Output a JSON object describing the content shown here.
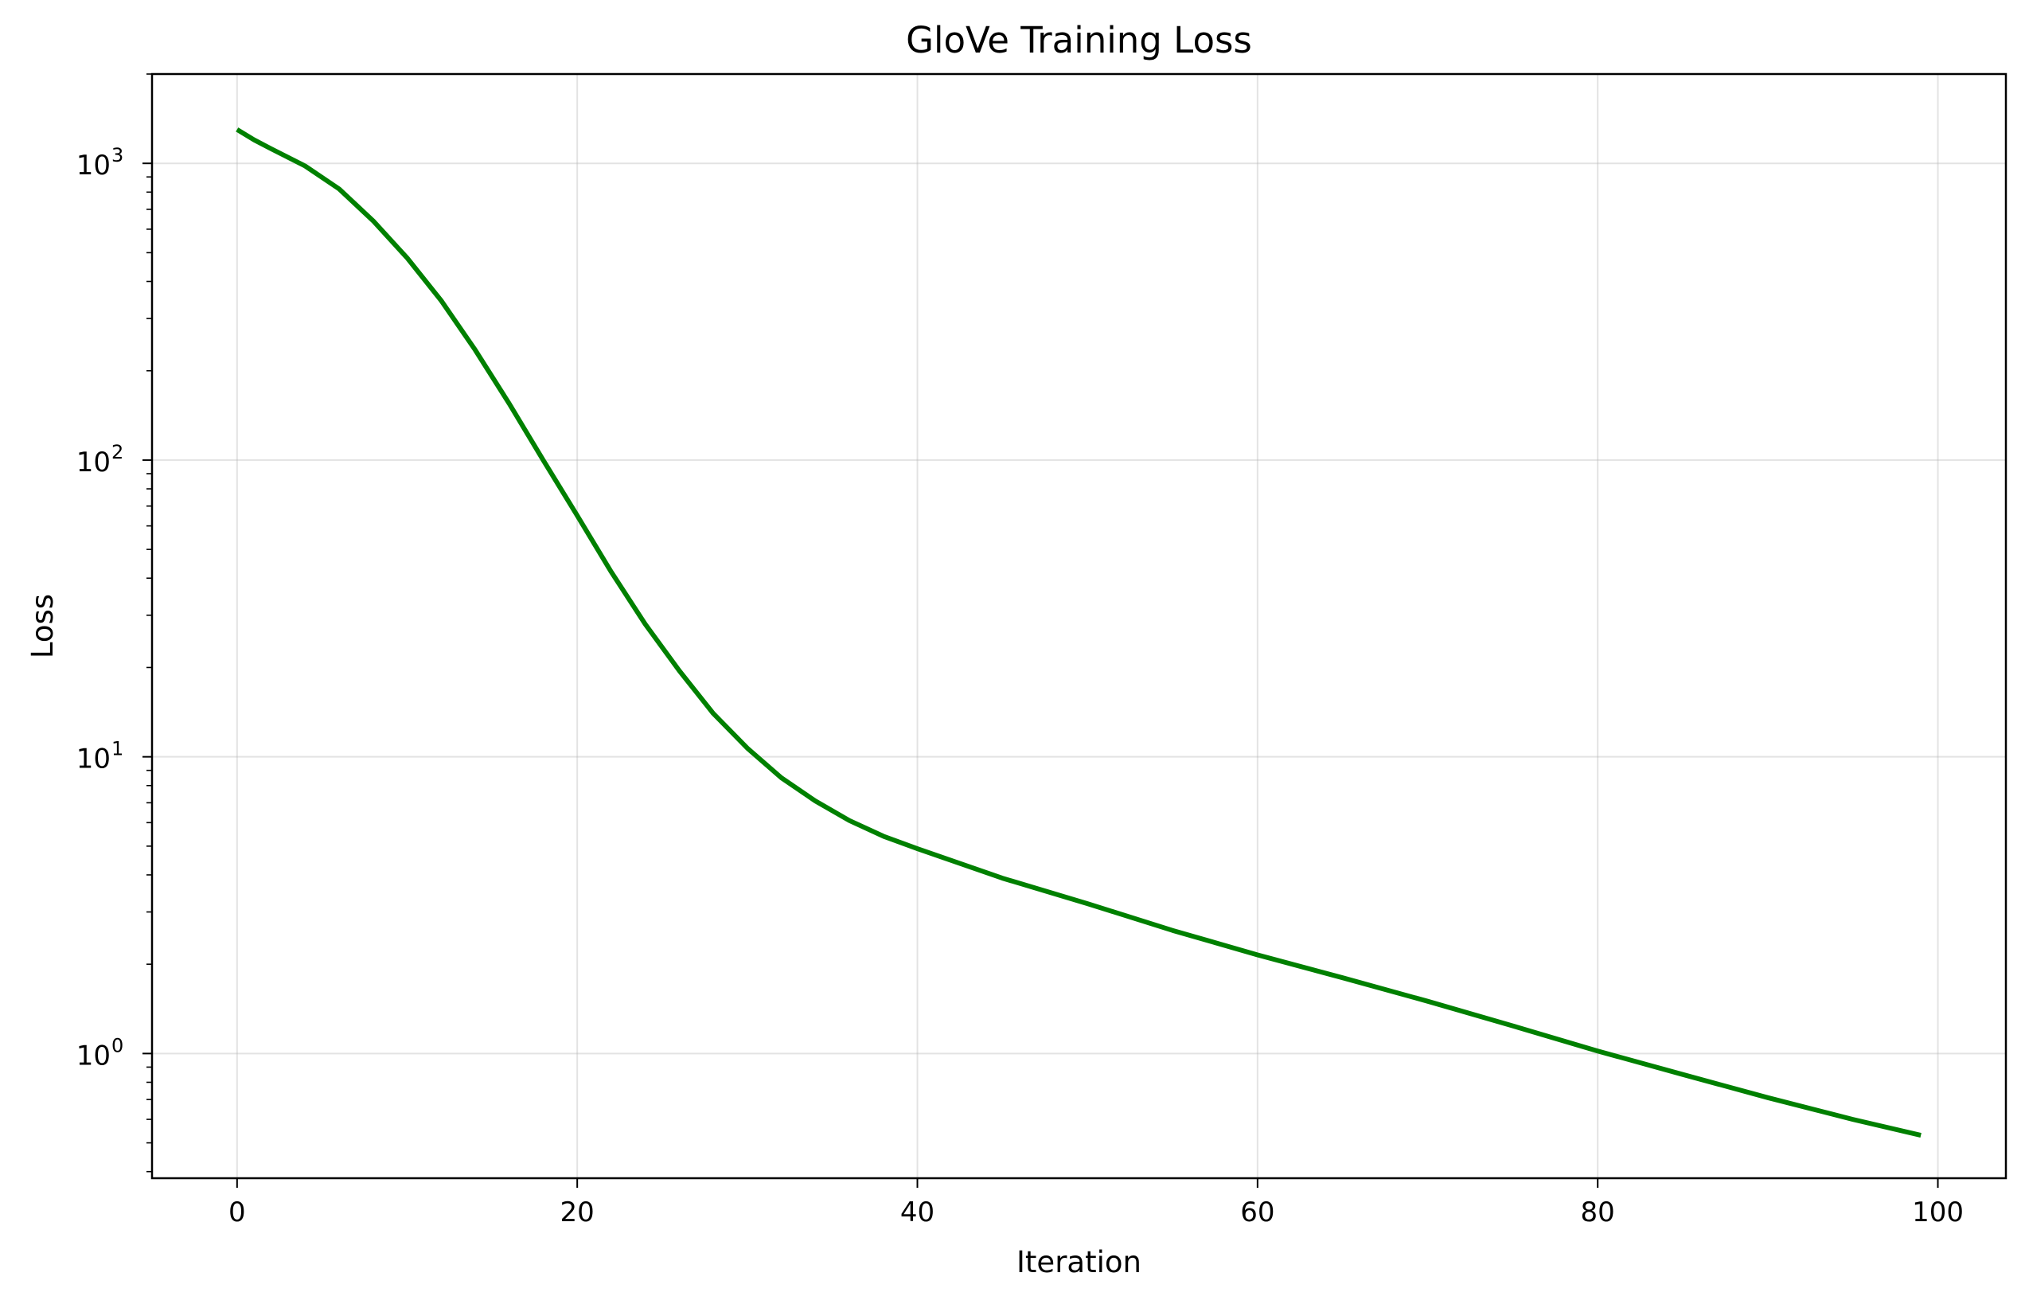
{
  "chart_data": {
    "type": "line",
    "title": "GloVe Training Loss",
    "xlabel": "Iteration",
    "ylabel": "Loss",
    "xlim": [
      -5,
      104
    ],
    "ylim": [
      0.38,
      2000
    ],
    "yscale": "log",
    "grid": true,
    "legend": "none",
    "x_ticks": [
      0,
      20,
      40,
      60,
      80,
      100
    ],
    "y_ticks": [
      {
        "value": 1,
        "base": "10",
        "exp": "0"
      },
      {
        "value": 10,
        "base": "10",
        "exp": "1"
      },
      {
        "value": 100,
        "base": "10",
        "exp": "2"
      },
      {
        "value": 1000,
        "base": "10",
        "exp": "3"
      }
    ],
    "series": [
      {
        "color": "#008000",
        "x": [
          0,
          1,
          2,
          4,
          6,
          8,
          10,
          12,
          14,
          16,
          18,
          20,
          22,
          24,
          26,
          28,
          30,
          32,
          34,
          36,
          38,
          40,
          45,
          50,
          55,
          60,
          65,
          70,
          75,
          80,
          85,
          90,
          95,
          99
        ],
        "y": [
          1300,
          1200,
          1120,
          980,
          820,
          640,
          480,
          345,
          235,
          155,
          100,
          65,
          42,
          28,
          19.5,
          14,
          10.7,
          8.5,
          7.1,
          6.1,
          5.4,
          4.9,
          3.9,
          3.2,
          2.6,
          2.15,
          1.8,
          1.5,
          1.24,
          1.02,
          0.85,
          0.71,
          0.6,
          0.53
        ]
      }
    ]
  }
}
